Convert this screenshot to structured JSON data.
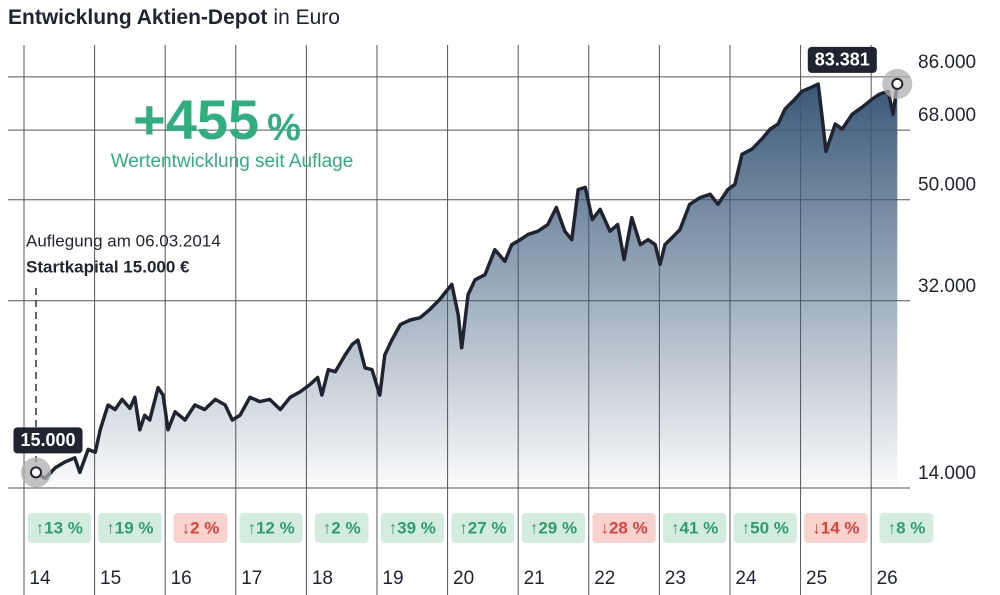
{
  "chart_data": {
    "type": "line",
    "title": "Entwicklung Aktien-Depot",
    "subtitle": "in Euro",
    "yscale": "log",
    "grid": true,
    "area": true,
    "color": "#1f2430",
    "area_color": "#3a5878",
    "xlim": [
      2014,
      2026.55
    ],
    "ylim": [
      14000,
      99000
    ],
    "yticks": [
      {
        "value": 14000,
        "label": "14.000"
      },
      {
        "value": 32000,
        "label": "32.000"
      },
      {
        "value": 50000,
        "label": "50.000"
      },
      {
        "value": 68000,
        "label": "68.000"
      },
      {
        "value": 86000,
        "label": "86.000"
      }
    ],
    "xticks": [
      {
        "value": 2014,
        "label": "14"
      },
      {
        "value": 2015,
        "label": "15"
      },
      {
        "value": 2016,
        "label": "16"
      },
      {
        "value": 2017,
        "label": "17"
      },
      {
        "value": 2018,
        "label": "18"
      },
      {
        "value": 2019,
        "label": "19"
      },
      {
        "value": 2020,
        "label": "20"
      },
      {
        "value": 2021,
        "label": "21"
      },
      {
        "value": 2022,
        "label": "22"
      },
      {
        "value": 2023,
        "label": "23"
      },
      {
        "value": 2024,
        "label": "24"
      },
      {
        "value": 2025,
        "label": "25"
      },
      {
        "value": 2026,
        "label": "26"
      }
    ],
    "x": [
      2014.17,
      2014.3,
      2014.44,
      2014.58,
      2014.72,
      2014.79,
      2014.91,
      2015.01,
      2015.08,
      2015.19,
      2015.29,
      2015.39,
      2015.5,
      2015.57,
      2015.64,
      2015.71,
      2015.78,
      2015.9,
      2015.97,
      2016.04,
      2016.14,
      2016.28,
      2016.42,
      2016.56,
      2016.71,
      2016.85,
      2016.95,
      2017.06,
      2017.2,
      2017.34,
      2017.48,
      2017.63,
      2017.77,
      2017.91,
      2018.05,
      2018.16,
      2018.22,
      2018.31,
      2018.41,
      2018.55,
      2018.65,
      2018.73,
      2018.83,
      2018.93,
      2019.04,
      2019.11,
      2019.21,
      2019.33,
      2019.47,
      2019.61,
      2019.75,
      2019.89,
      2020.06,
      2020.15,
      2020.2,
      2020.29,
      2020.39,
      2020.53,
      2020.67,
      2020.81,
      2020.91,
      2021.03,
      2021.14,
      2021.28,
      2021.42,
      2021.54,
      2021.66,
      2021.76,
      2021.85,
      2021.95,
      2022.05,
      2022.16,
      2022.3,
      2022.41,
      2022.5,
      2022.61,
      2022.73,
      2022.84,
      2022.94,
      2023.01,
      2023.08,
      2023.18,
      2023.29,
      2023.43,
      2023.58,
      2023.72,
      2023.83,
      2023.97,
      2024.07,
      2024.17,
      2024.31,
      2024.45,
      2024.57,
      2024.68,
      2024.78,
      2024.92,
      2025.02,
      2025.16,
      2025.25,
      2025.3,
      2025.36,
      2025.49,
      2025.59,
      2025.73,
      2025.87,
      2026.01,
      2026.12,
      2026.24,
      2026.31,
      2026.37
    ],
    "values": [
      15000,
      14600,
      15300,
      15700,
      16000,
      15000,
      16600,
      16400,
      18100,
      20200,
      19800,
      20700,
      19900,
      20900,
      18100,
      19300,
      18900,
      21800,
      21100,
      18100,
      19600,
      18900,
      20200,
      19800,
      20700,
      20200,
      18900,
      19300,
      20900,
      20500,
      20700,
      19800,
      20900,
      21400,
      22100,
      22800,
      21100,
      23600,
      23400,
      25200,
      26400,
      26900,
      23800,
      23600,
      21100,
      25200,
      26900,
      28800,
      29400,
      29700,
      30800,
      32200,
      34400,
      30100,
      26000,
      32900,
      35100,
      35900,
      40100,
      38100,
      41000,
      41900,
      42900,
      43500,
      44800,
      48300,
      43500,
      41900,
      52300,
      52800,
      45800,
      47900,
      43500,
      44800,
      38400,
      46200,
      41000,
      41900,
      41000,
      37600,
      41000,
      42300,
      43800,
      49000,
      50500,
      51200,
      49000,
      52300,
      53500,
      61100,
      62500,
      65300,
      68300,
      69800,
      74600,
      77900,
      80700,
      82200,
      83300,
      72900,
      61900,
      69800,
      68300,
      72900,
      75200,
      77900,
      79700,
      80700,
      72900,
      83381
    ],
    "value_labels": [
      "15.000",
      null,
      null,
      null,
      null,
      null,
      null,
      null,
      null,
      null,
      null,
      null,
      null,
      null,
      null,
      null,
      null,
      null,
      null,
      null,
      null,
      null,
      null,
      null,
      null,
      null,
      null,
      null,
      null,
      null,
      null,
      null,
      null,
      null,
      null,
      null,
      null,
      null,
      null,
      null,
      null,
      null,
      null,
      null,
      null,
      null,
      null,
      null,
      null,
      null,
      null,
      null,
      null,
      null,
      null,
      null,
      null,
      null,
      null,
      null,
      null,
      null,
      null,
      null,
      null,
      null,
      null,
      null,
      null,
      null,
      null,
      null,
      null,
      null,
      null,
      null,
      null,
      null,
      null,
      null,
      null,
      null,
      null,
      null,
      null,
      null,
      null,
      null,
      null,
      null,
      null,
      null,
      null,
      null,
      null,
      null,
      null,
      null,
      null,
      null,
      null,
      null,
      null,
      null,
      null,
      null,
      null,
      null,
      null,
      "83.381"
    ],
    "annotations": {
      "headline": "+455",
      "headline_unit": "%",
      "headline_caption": "Wertentwicklung seit Auflage",
      "launch": "Auflegung am 06.03.2014",
      "start_capital": "Startkapital 15.000 €"
    },
    "returns": {
      "values": [
        13,
        19,
        -2,
        12,
        2,
        39,
        27,
        29,
        -28,
        41,
        50,
        -14,
        8
      ],
      "value_labels": [
        "↑13 %",
        "↑19 %",
        "↓2 %",
        "↑12 %",
        "↑2 %",
        "↑39 %",
        "↑27 %",
        "↑29 %",
        "↓28 %",
        "↑41 %",
        "↑50 %",
        "↓14 %",
        "↑8 %"
      ],
      "up_color": "#2e9e6e",
      "up_background": "#d4ecdf",
      "down_color": "#e0413a",
      "down_background": "#f7d2cf"
    }
  }
}
